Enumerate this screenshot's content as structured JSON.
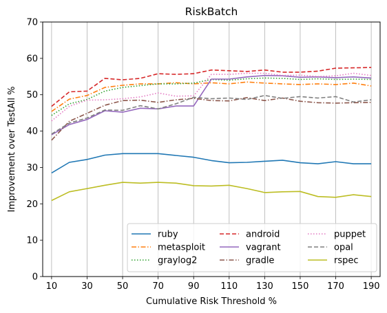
{
  "chart_data": {
    "type": "line",
    "title": "RiskBatch",
    "xlabel": "Cumulative Risk Threshold %",
    "ylabel": "Improvement over TestAll %",
    "x": [
      10,
      20,
      30,
      40,
      50,
      60,
      70,
      80,
      90,
      100,
      110,
      120,
      130,
      140,
      150,
      160,
      170,
      180,
      190
    ],
    "xticks": [
      10,
      30,
      50,
      70,
      90,
      110,
      130,
      150,
      170,
      190
    ],
    "yticks": [
      0,
      10,
      20,
      30,
      40,
      50,
      60,
      70
    ],
    "xlim": [
      5,
      195
    ],
    "ylim": [
      0,
      70
    ],
    "grid": "vertical",
    "legend_position": "lower-right",
    "legend_columns": 3,
    "series": [
      {
        "name": "ruby",
        "color": "#1f77b4",
        "dash": "solid",
        "values": [
          28.5,
          31.4,
          32.2,
          33.4,
          33.8,
          33.8,
          33.8,
          33.3,
          32.8,
          31.9,
          31.3,
          31.4,
          31.7,
          32.0,
          31.3,
          31.0,
          31.6,
          31.0,
          31.0
        ]
      },
      {
        "name": "metasploit",
        "color": "#ff7f0e",
        "dash": "dashdot",
        "values": [
          45.4,
          48.8,
          49.8,
          52.0,
          52.6,
          53.0,
          53.0,
          53.3,
          53.0,
          53.3,
          53.0,
          53.5,
          53.2,
          53.0,
          52.8,
          53.0,
          52.8,
          53.2,
          52.4
        ]
      },
      {
        "name": "graylog2",
        "color": "#2ca02c",
        "dash": "dotted",
        "values": [
          44.3,
          47.5,
          48.7,
          51.0,
          52.0,
          52.5,
          53.0,
          53.0,
          53.2,
          54.2,
          54.0,
          54.4,
          54.6,
          54.5,
          54.2,
          54.4,
          54.2,
          54.3,
          54.2
        ]
      },
      {
        "name": "android",
        "color": "#d62728",
        "dash": "dashed",
        "values": [
          46.8,
          50.8,
          51.0,
          54.5,
          54.1,
          54.5,
          55.8,
          55.6,
          55.8,
          56.8,
          56.6,
          56.4,
          56.8,
          56.2,
          56.2,
          56.5,
          57.3,
          57.4,
          57.5
        ]
      },
      {
        "name": "vagrant",
        "color": "#9467bd",
        "dash": "solid",
        "values": [
          39.0,
          41.8,
          43.2,
          45.6,
          45.2,
          46.3,
          46.1,
          46.9,
          46.9,
          54.3,
          54.3,
          54.9,
          55.3,
          55.2,
          54.8,
          54.9,
          54.7,
          54.9,
          54.6
        ]
      },
      {
        "name": "gradle",
        "color": "#8c564b",
        "dash": "dashdot",
        "values": [
          37.5,
          42.7,
          44.9,
          47.1,
          48.4,
          48.5,
          47.9,
          48.6,
          49.0,
          48.4,
          48.3,
          49.2,
          48.4,
          49.1,
          48.2,
          47.8,
          47.7,
          47.8,
          47.9
        ]
      },
      {
        "name": "puppet",
        "color": "#e377c2",
        "dash": "dotted",
        "values": [
          42.8,
          46.8,
          48.5,
          48.6,
          48.9,
          49.4,
          50.5,
          49.6,
          49.7,
          55.6,
          55.6,
          55.9,
          55.9,
          55.3,
          55.4,
          55.0,
          55.2,
          55.9,
          55.3
        ]
      },
      {
        "name": "opal",
        "color": "#7f7f7f",
        "dash": "dashed",
        "values": [
          39.2,
          42.2,
          43.6,
          45.8,
          45.7,
          47.0,
          46.1,
          47.5,
          49.3,
          48.9,
          49.1,
          48.7,
          49.8,
          49.0,
          49.5,
          49.1,
          49.5,
          48.0,
          48.6
        ]
      },
      {
        "name": "rspec",
        "color": "#bcbd22",
        "dash": "solid",
        "values": [
          20.9,
          23.3,
          24.2,
          25.1,
          25.9,
          25.7,
          25.9,
          25.7,
          25.0,
          24.9,
          25.1,
          24.2,
          23.1,
          23.3,
          23.4,
          22.0,
          21.8,
          22.5,
          22.0
        ]
      }
    ]
  }
}
